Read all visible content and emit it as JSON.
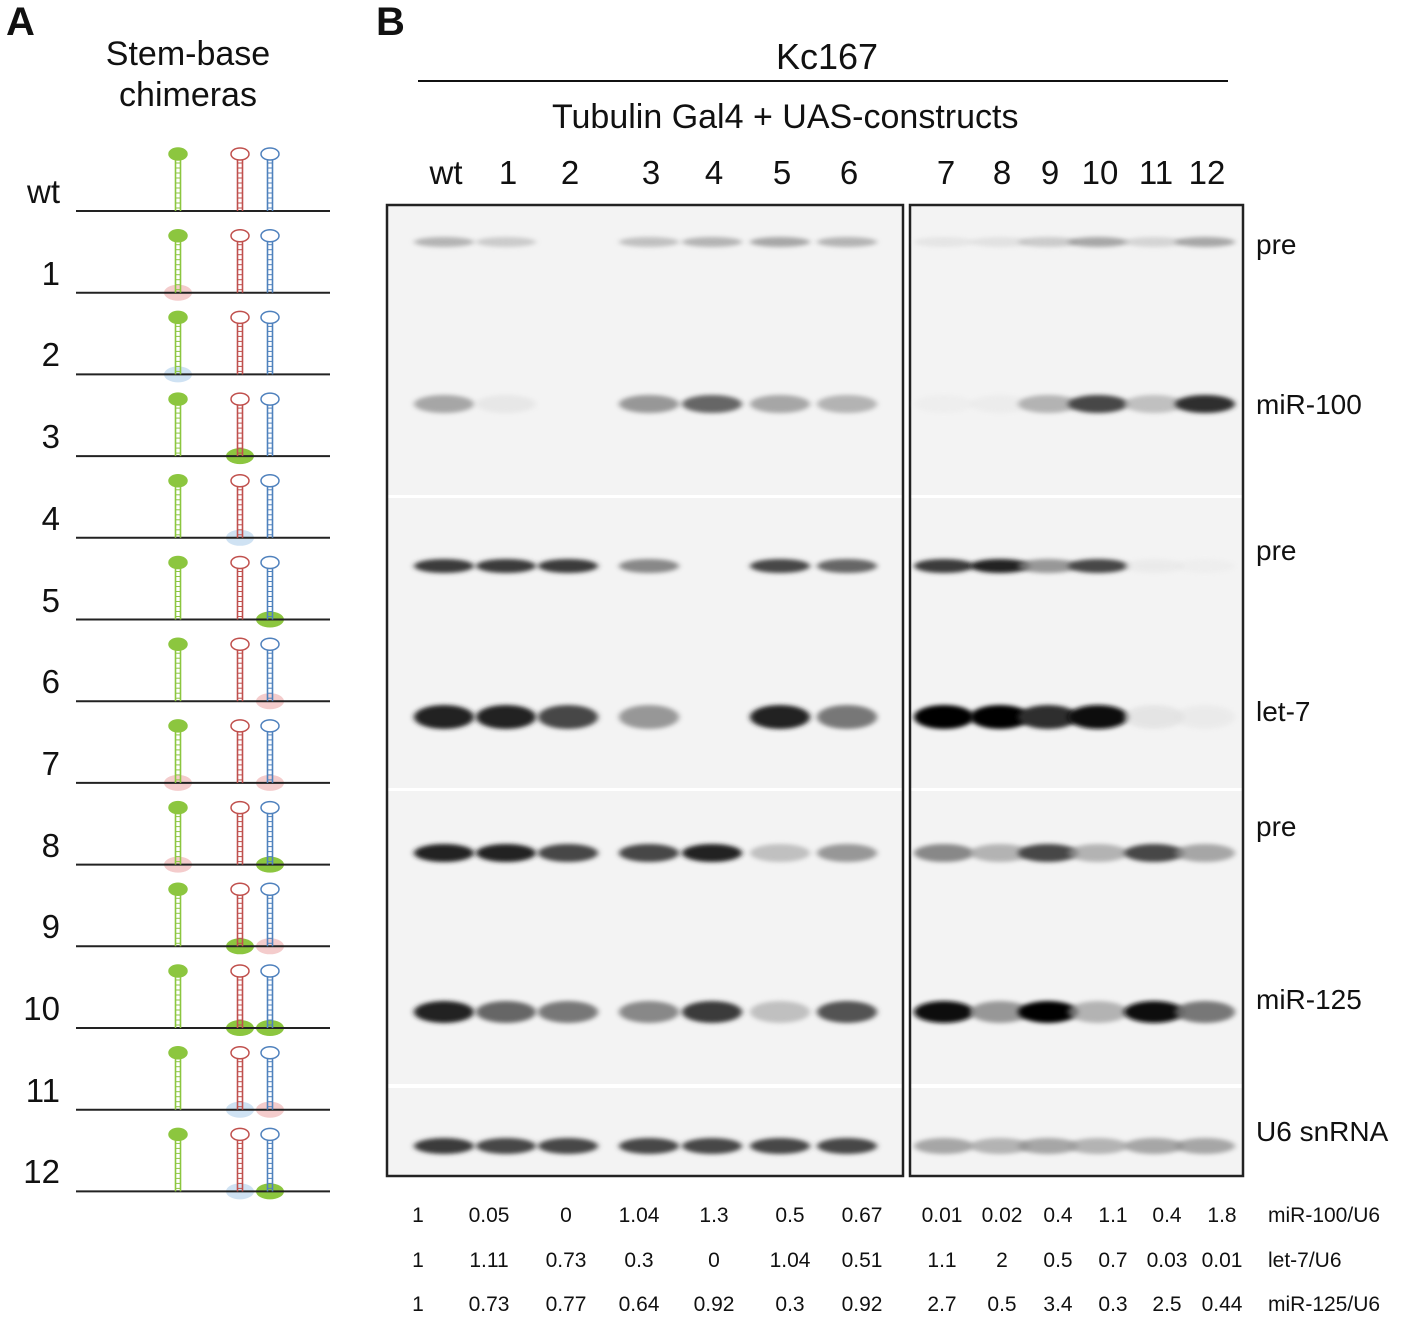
{
  "panelA": {
    "letter": "A",
    "title_line1": "Stem-base",
    "title_line2": "chimeras",
    "rows": [
      "wt",
      "1",
      "2",
      "3",
      "4",
      "5",
      "6",
      "7",
      "8",
      "9",
      "10",
      "11",
      "12"
    ],
    "colors": {
      "green": "#8cc63f",
      "red": "#c0504d",
      "blue": "#4f81bd",
      "salmon": "#f4cccc",
      "lightblue": "#cfe2f3"
    },
    "bases": [
      [
        null,
        null,
        null
      ],
      [
        "salmon",
        null,
        null
      ],
      [
        "lightblue",
        null,
        null
      ],
      [
        null,
        "green",
        null
      ],
      [
        null,
        "lightblue",
        null
      ],
      [
        null,
        null,
        "green"
      ],
      [
        null,
        null,
        "salmon"
      ],
      [
        "salmon",
        null,
        "salmon"
      ],
      [
        "salmon",
        null,
        "green"
      ],
      [
        null,
        "green",
        "salmon"
      ],
      [
        null,
        "green",
        "green"
      ],
      [
        null,
        "lightblue",
        "salmon"
      ],
      [
        null,
        "lightblue",
        "green"
      ]
    ]
  },
  "panelB": {
    "letter": "B",
    "cell_line": "Kc167",
    "construct_label": "Tubulin Gal4 + UAS-constructs",
    "lanes": [
      "wt",
      "1",
      "2",
      "3",
      "4",
      "5",
      "6",
      "7",
      "8",
      "9",
      "10",
      "11",
      "12"
    ],
    "band_labels": [
      "pre",
      "miR-100",
      "pre",
      "let-7",
      "pre",
      "miR-125",
      "U6 snRNA"
    ],
    "band_intensity": {
      "pre100": [
        0.35,
        0.25,
        0,
        0.3,
        0.35,
        0.4,
        0.35,
        0.1,
        0.12,
        0.25,
        0.4,
        0.2,
        0.4
      ],
      "miR100": [
        0.4,
        0.08,
        0,
        0.45,
        0.6,
        0.4,
        0.35,
        0.02,
        0.04,
        0.35,
        0.7,
        0.3,
        0.8
      ],
      "prelet7": [
        0.75,
        0.75,
        0.75,
        0.5,
        0,
        0.7,
        0.6,
        0.75,
        0.85,
        0.45,
        0.7,
        0.05,
        0.02
      ],
      "let7": [
        0.85,
        0.85,
        0.7,
        0.45,
        0,
        0.85,
        0.55,
        1,
        1,
        0.8,
        0.95,
        0.1,
        0.05
      ],
      "pre125": [
        0.85,
        0.85,
        0.7,
        0.7,
        0.85,
        0.3,
        0.45,
        0.5,
        0.35,
        0.7,
        0.35,
        0.7,
        0.4
      ],
      "miR125": [
        0.85,
        0.6,
        0.55,
        0.5,
        0.75,
        0.3,
        0.65,
        0.95,
        0.45,
        1,
        0.35,
        0.95,
        0.55
      ],
      "U6": [
        0.75,
        0.7,
        0.7,
        0.7,
        0.7,
        0.7,
        0.7,
        0.4,
        0.35,
        0.4,
        0.35,
        0.4,
        0.4
      ]
    },
    "quant_rows": [
      {
        "label": "miR-100/U6",
        "values": [
          "1",
          "0.05",
          "0",
          "1.04",
          "1.3",
          "0.5",
          "0.67",
          "0.01",
          "0.02",
          "0.4",
          "1.1",
          "0.4",
          "1.8"
        ]
      },
      {
        "label": "let-7/U6",
        "values": [
          "1",
          "1.11",
          "0.73",
          "0.3",
          "0",
          "1.04",
          "0.51",
          "1.1",
          "2",
          "0.5",
          "0.7",
          "0.03",
          "0.01"
        ]
      },
      {
        "label": "miR-125/U6",
        "values": [
          "1",
          "0.73",
          "0.77",
          "0.64",
          "0.92",
          "0.3",
          "0.92",
          "2.7",
          "0.5",
          "3.4",
          "0.3",
          "2.5",
          "0.44"
        ]
      }
    ]
  }
}
